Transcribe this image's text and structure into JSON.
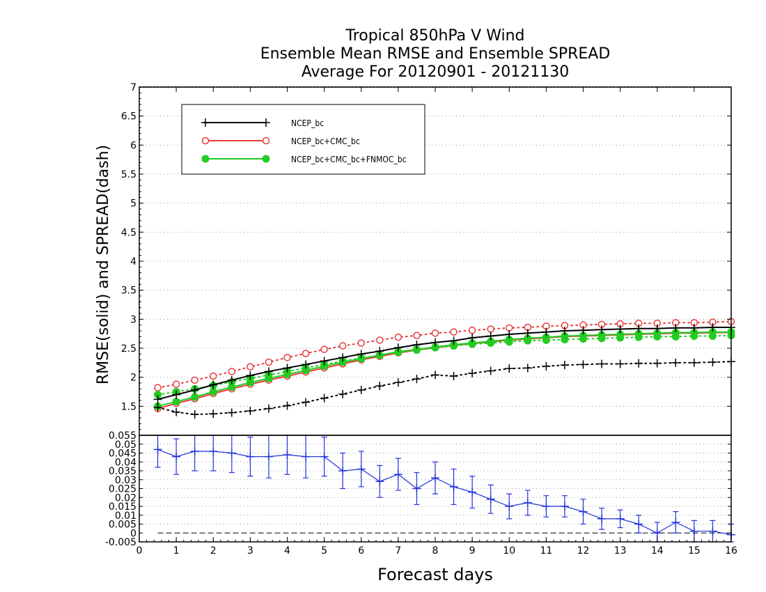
{
  "chart_data": [
    {
      "type": "line",
      "title": [
        "Tropical 850hPa V Wind",
        "Ensemble Mean RMSE and Ensemble SPREAD",
        "Average For 20120901 - 20121130"
      ],
      "xlabel": "Forecast days",
      "ylabel": "RMSE(solid) and SPREAD(dash)",
      "xlim": [
        0,
        16
      ],
      "ylim": [
        1,
        7
      ],
      "x_ticks": [
        "0",
        "1",
        "2",
        "3",
        "4",
        "5",
        "6",
        "7",
        "8",
        "9",
        "10",
        "11",
        "12",
        "13",
        "14",
        "15",
        "16"
      ],
      "y_ticks": [
        "1.5",
        "2",
        "2.5",
        "3",
        "3.5",
        "4",
        "4.5",
        "5",
        "5.5",
        "6",
        "6.5",
        "7"
      ],
      "grid": true,
      "legend_position": "top-left",
      "x": [
        0.5,
        1,
        1.5,
        2,
        2.5,
        3,
        3.5,
        4,
        4.5,
        5,
        5.5,
        6,
        6.5,
        7,
        7.5,
        8,
        8.5,
        9,
        9.5,
        10,
        10.5,
        11,
        11.5,
        12,
        12.5,
        13,
        13.5,
        14,
        14.5,
        15,
        15.5,
        16
      ],
      "series": [
        {
          "name": "NCEP_bc",
          "color": "#000000",
          "marker": "plus",
          "rmse": [
            1.62,
            1.7,
            1.78,
            1.87,
            1.95,
            2.03,
            2.1,
            2.16,
            2.22,
            2.28,
            2.34,
            2.4,
            2.45,
            2.51,
            2.56,
            2.6,
            2.63,
            2.68,
            2.71,
            2.74,
            2.76,
            2.78,
            2.8,
            2.81,
            2.82,
            2.83,
            2.84,
            2.84,
            2.85,
            2.85,
            2.86,
            2.86
          ],
          "spread": [
            1.48,
            1.4,
            1.36,
            1.37,
            1.39,
            1.42,
            1.46,
            1.51,
            1.57,
            1.64,
            1.71,
            1.78,
            1.85,
            1.91,
            1.97,
            2.04,
            2.02,
            2.07,
            2.11,
            2.15,
            2.16,
            2.19,
            2.21,
            2.22,
            2.23,
            2.23,
            2.24,
            2.24,
            2.25,
            2.25,
            2.26,
            2.27
          ]
        },
        {
          "name": "NCEP_bc+CMC_bc",
          "color": "#e83a3a",
          "marker": "open-circle",
          "rmse": [
            1.46,
            1.55,
            1.63,
            1.72,
            1.8,
            1.88,
            1.95,
            2.02,
            2.09,
            2.16,
            2.23,
            2.3,
            2.36,
            2.42,
            2.47,
            2.51,
            2.55,
            2.58,
            2.61,
            2.64,
            2.66,
            2.68,
            2.7,
            2.71,
            2.72,
            2.73,
            2.74,
            2.75,
            2.76,
            2.76,
            2.77,
            2.77
          ],
          "spread": [
            1.82,
            1.88,
            1.95,
            2.02,
            2.1,
            2.18,
            2.26,
            2.34,
            2.41,
            2.48,
            2.54,
            2.59,
            2.64,
            2.69,
            2.72,
            2.76,
            2.78,
            2.81,
            2.83,
            2.85,
            2.86,
            2.88,
            2.89,
            2.9,
            2.91,
            2.92,
            2.93,
            2.93,
            2.94,
            2.94,
            2.95,
            2.96
          ]
        },
        {
          "name": "NCEP_bc+CMC_bc+FNMOC_bc",
          "color": "#22cc22",
          "marker": "filled-circle",
          "rmse": [
            1.5,
            1.58,
            1.66,
            1.75,
            1.83,
            1.91,
            1.98,
            2.05,
            2.12,
            2.19,
            2.26,
            2.32,
            2.38,
            2.44,
            2.48,
            2.52,
            2.56,
            2.59,
            2.62,
            2.65,
            2.67,
            2.69,
            2.71,
            2.72,
            2.73,
            2.74,
            2.75,
            2.76,
            2.77,
            2.77,
            2.78,
            2.78
          ],
          "spread": [
            1.7,
            1.75,
            1.8,
            1.86,
            1.92,
            1.98,
            2.04,
            2.1,
            2.16,
            2.22,
            2.28,
            2.33,
            2.38,
            2.43,
            2.47,
            2.51,
            2.54,
            2.57,
            2.59,
            2.61,
            2.63,
            2.64,
            2.65,
            2.66,
            2.67,
            2.68,
            2.69,
            2.7,
            2.7,
            2.71,
            2.71,
            2.72
          ]
        }
      ]
    },
    {
      "type": "line",
      "xlim": [
        0,
        16
      ],
      "ylim": [
        -0.005,
        0.055
      ],
      "y_ticks": [
        "-0.005",
        "0",
        "0.005",
        "0.01",
        "0.015",
        "0.02",
        "0.025",
        "0.03",
        "0.035",
        "0.04",
        "0.045",
        "0.05",
        "0.055"
      ],
      "grid": true,
      "reference_line": 0,
      "series": [
        {
          "color": "#2233dd",
          "marker": "plus",
          "x": [
            0.5,
            1,
            1.5,
            2,
            2.5,
            3,
            3.5,
            4,
            4.5,
            5,
            5.5,
            6,
            6.5,
            7,
            7.5,
            8,
            8.5,
            9,
            9.5,
            10,
            10.5,
            11,
            11.5,
            12,
            12.5,
            13,
            13.5,
            14,
            14.5,
            15,
            15.5,
            16
          ],
          "values": [
            0.047,
            0.043,
            0.046,
            0.046,
            0.045,
            0.043,
            0.043,
            0.044,
            0.043,
            0.043,
            0.035,
            0.036,
            0.029,
            0.033,
            0.025,
            0.031,
            0.026,
            0.023,
            0.019,
            0.015,
            0.017,
            0.015,
            0.015,
            0.012,
            0.008,
            0.008,
            0.005,
            0.0,
            0.006,
            0.001,
            0.001,
            -0.001
          ],
          "error": [
            0.01,
            0.01,
            0.011,
            0.011,
            0.011,
            0.011,
            0.012,
            0.011,
            0.012,
            0.011,
            0.01,
            0.01,
            0.009,
            0.009,
            0.009,
            0.009,
            0.01,
            0.009,
            0.008,
            0.007,
            0.007,
            0.006,
            0.006,
            0.007,
            0.006,
            0.005,
            0.005,
            0.006,
            0.006,
            0.006,
            0.006,
            0.006
          ]
        }
      ]
    }
  ],
  "legend": [
    {
      "label": "NCEP_bc"
    },
    {
      "label": "NCEP_bc+CMC_bc"
    },
    {
      "label": "NCEP_bc+CMC_bc+FNMOC_bc"
    }
  ]
}
